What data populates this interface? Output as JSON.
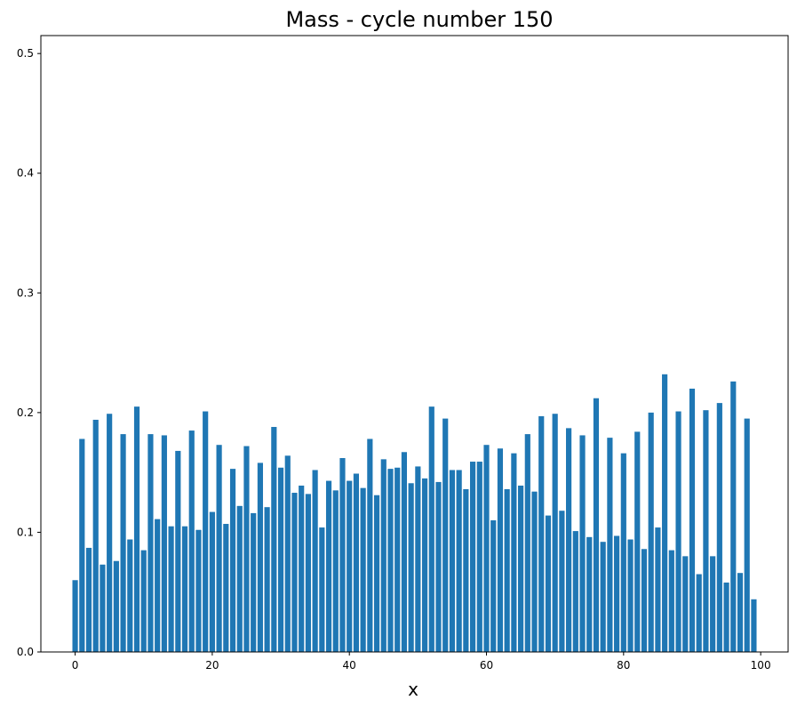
{
  "chart_data": {
    "type": "bar",
    "title": "Mass - cycle number 150",
    "xlabel": "x",
    "ylabel": "",
    "xlim": [
      -5,
      104
    ],
    "ylim": [
      0,
      0.515
    ],
    "xticks": [
      0,
      20,
      40,
      60,
      80,
      100
    ],
    "xtick_labels": [
      "0",
      "20",
      "40",
      "60",
      "80",
      "100"
    ],
    "yticks": [
      0.0,
      0.1,
      0.2,
      0.3,
      0.4,
      0.5
    ],
    "ytick_labels": [
      "0.0",
      "0.1",
      "0.2",
      "0.3",
      "0.4",
      "0.5"
    ],
    "grid": false,
    "bar_color": "#1f77b4",
    "x": [
      0,
      1,
      2,
      3,
      4,
      5,
      6,
      7,
      8,
      9,
      10,
      11,
      12,
      13,
      14,
      15,
      16,
      17,
      18,
      19,
      20,
      21,
      22,
      23,
      24,
      25,
      26,
      27,
      28,
      29,
      30,
      31,
      32,
      33,
      34,
      35,
      36,
      37,
      38,
      39,
      40,
      41,
      42,
      43,
      44,
      45,
      46,
      47,
      48,
      49,
      50,
      51,
      52,
      53,
      54,
      55,
      56,
      57,
      58,
      59,
      60,
      61,
      62,
      63,
      64,
      65,
      66,
      67,
      68,
      69,
      70,
      71,
      72,
      73,
      74,
      75,
      76,
      77,
      78,
      79,
      80,
      81,
      82,
      83,
      84,
      85,
      86,
      87,
      88,
      89,
      90,
      91,
      92,
      93,
      94,
      95,
      96,
      97,
      98,
      99
    ],
    "values": [
      0.06,
      0.178,
      0.087,
      0.194,
      0.073,
      0.199,
      0.076,
      0.182,
      0.094,
      0.205,
      0.085,
      0.182,
      0.111,
      0.181,
      0.105,
      0.168,
      0.105,
      0.185,
      0.102,
      0.201,
      0.117,
      0.173,
      0.107,
      0.153,
      0.122,
      0.172,
      0.116,
      0.158,
      0.121,
      0.188,
      0.154,
      0.164,
      0.133,
      0.139,
      0.132,
      0.152,
      0.104,
      0.143,
      0.135,
      0.162,
      0.143,
      0.149,
      0.137,
      0.178,
      0.131,
      0.161,
      0.153,
      0.154,
      0.167,
      0.141,
      0.155,
      0.145,
      0.205,
      0.142,
      0.195,
      0.152,
      0.152,
      0.136,
      0.159,
      0.159,
      0.173,
      0.11,
      0.17,
      0.136,
      0.166,
      0.139,
      0.182,
      0.134,
      0.197,
      0.114,
      0.199,
      0.118,
      0.187,
      0.101,
      0.181,
      0.096,
      0.212,
      0.092,
      0.179,
      0.097,
      0.166,
      0.094,
      0.184,
      0.086,
      0.2,
      0.104,
      0.232,
      0.085,
      0.201,
      0.08,
      0.22,
      0.065,
      0.202,
      0.08,
      0.208,
      0.058,
      0.226,
      0.066,
      0.195,
      0.044
    ]
  }
}
